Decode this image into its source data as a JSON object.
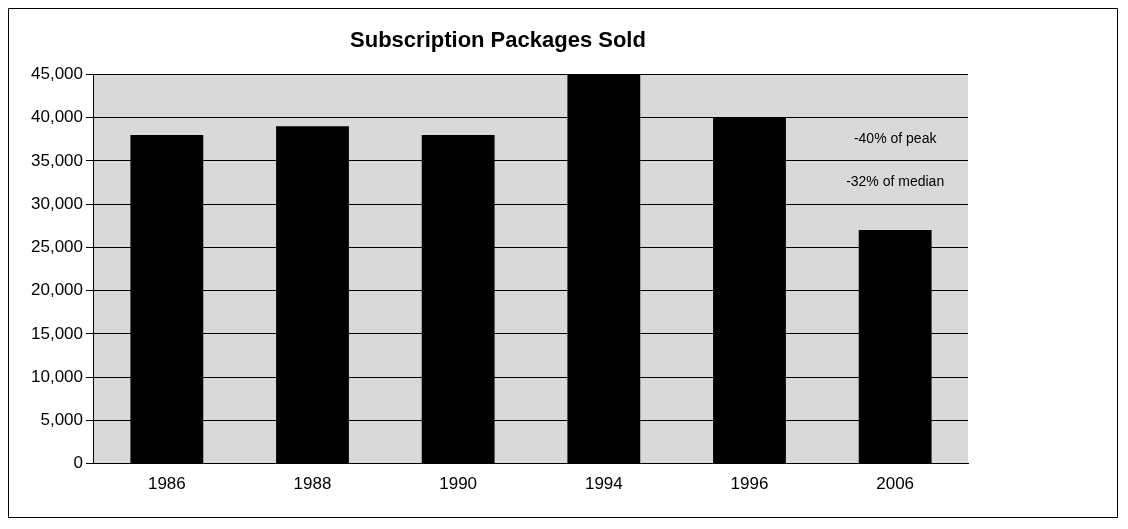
{
  "chart_data": {
    "type": "bar",
    "title": "Subscription Packages Sold",
    "categories": [
      "1986",
      "1988",
      "1990",
      "1994",
      "1996",
      "2006"
    ],
    "values": [
      38000,
      39000,
      38000,
      45000,
      40000,
      27000
    ],
    "color": "#000000",
    "ylim": [
      0,
      45000
    ],
    "yticks": [
      0,
      {
        "value": 5000,
        "label": "5,000"
      },
      {
        "value": 10000,
        "label": "10,000"
      },
      {
        "value": 15000,
        "label": "15,000"
      },
      {
        "value": 20000,
        "label": "20,000"
      },
      {
        "value": 25000,
        "label": "25,000"
      },
      {
        "value": 30000,
        "label": "30,000"
      },
      {
        "value": 35000,
        "label": "35,000"
      },
      {
        "value": 40000,
        "label": "40,000"
      },
      {
        "value": 45000,
        "label": "45,000"
      }
    ],
    "grid": "y",
    "legend": false,
    "annotations": [
      "-40% of peak",
      "-32% of median"
    ]
  }
}
